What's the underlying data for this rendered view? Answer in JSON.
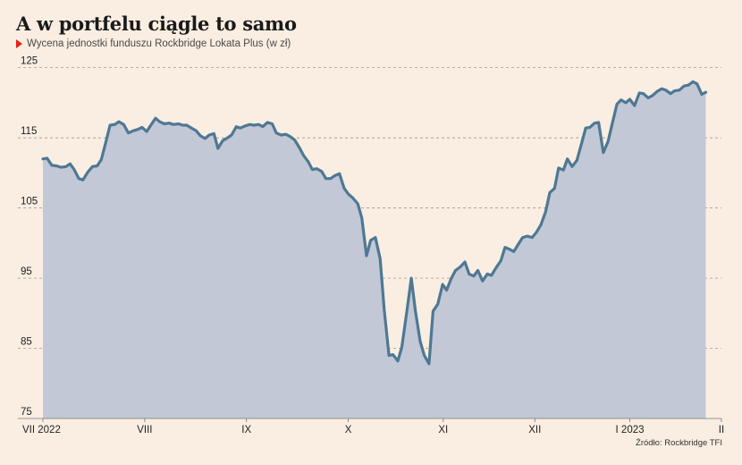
{
  "title": "A w portfelu ciągle to samo",
  "subtitle": "Wycena jednostki funduszu Rockbridge Lokata Plus (w zł)",
  "source": "Źródło: Rockbridge TFI",
  "colors": {
    "background": "#f9eee1",
    "line": "#4e7894",
    "area": "#c3c8d6",
    "marker": "#e2231a",
    "grid": "#8a8a8a"
  },
  "chart_data": {
    "type": "area",
    "title": "A w portfelu ciągle to samo",
    "subtitle": "Wycena jednostki funduszu Rockbridge Lokata Plus (w zł)",
    "xlabel": "",
    "ylabel": "",
    "ylim": [
      75,
      127
    ],
    "yticks": [
      75,
      85,
      95,
      105,
      115,
      125
    ],
    "grid": true,
    "x_ticks": [
      {
        "label": "VII 2022",
        "x": 0
      },
      {
        "label": "VIII",
        "x": 15
      },
      {
        "label": "IX",
        "x": 30
      },
      {
        "label": "X",
        "x": 45
      },
      {
        "label": "XI",
        "x": 59
      },
      {
        "label": "XII",
        "x": 72.5
      },
      {
        "label": "I 2023",
        "x": 86.5
      },
      {
        "label": "II",
        "x": 100
      }
    ],
    "series": [
      {
        "values": [
          [
            0,
            112.0
          ],
          [
            0.6,
            112.1
          ],
          [
            1.3,
            111.1
          ],
          [
            2.0,
            111.0
          ],
          [
            2.7,
            110.8
          ],
          [
            3.4,
            110.9
          ],
          [
            4.0,
            111.3
          ],
          [
            4.6,
            110.5
          ],
          [
            5.3,
            109.2
          ],
          [
            5.9,
            109.0
          ],
          [
            6.6,
            110.1
          ],
          [
            7.3,
            110.9
          ],
          [
            8.0,
            111.0
          ],
          [
            8.6,
            111.9
          ],
          [
            9.3,
            114.5
          ],
          [
            9.9,
            116.8
          ],
          [
            10.6,
            116.9
          ],
          [
            11.2,
            117.3
          ],
          [
            11.9,
            116.9
          ],
          [
            12.6,
            115.7
          ],
          [
            13.3,
            116.0
          ],
          [
            14.0,
            116.2
          ],
          [
            14.6,
            116.5
          ],
          [
            15.3,
            115.9
          ],
          [
            15.9,
            116.8
          ],
          [
            16.6,
            117.8
          ],
          [
            17.2,
            117.3
          ],
          [
            17.9,
            117.0
          ],
          [
            18.6,
            117.1
          ],
          [
            19.2,
            116.9
          ],
          [
            20.0,
            117.0
          ],
          [
            20.6,
            116.8
          ],
          [
            21.2,
            116.8
          ],
          [
            21.9,
            116.4
          ],
          [
            22.6,
            116.0
          ],
          [
            23.2,
            115.3
          ],
          [
            23.9,
            114.9
          ],
          [
            24.5,
            115.4
          ],
          [
            25.2,
            115.6
          ],
          [
            25.8,
            113.5
          ],
          [
            26.5,
            114.6
          ],
          [
            27.2,
            115.0
          ],
          [
            27.8,
            115.4
          ],
          [
            28.5,
            116.6
          ],
          [
            29.1,
            116.4
          ],
          [
            29.8,
            116.7
          ],
          [
            30.5,
            116.9
          ],
          [
            31.1,
            116.8
          ],
          [
            31.8,
            116.9
          ],
          [
            32.4,
            116.6
          ],
          [
            33.1,
            117.2
          ],
          [
            33.8,
            117.0
          ],
          [
            34.4,
            115.7
          ],
          [
            35.1,
            115.4
          ],
          [
            35.8,
            115.5
          ],
          [
            36.4,
            115.2
          ],
          [
            37.1,
            114.7
          ],
          [
            37.8,
            113.6
          ],
          [
            38.4,
            112.5
          ],
          [
            39.1,
            111.6
          ],
          [
            39.7,
            110.5
          ],
          [
            40.4,
            110.6
          ],
          [
            41.1,
            110.2
          ],
          [
            41.7,
            109.2
          ],
          [
            42.4,
            109.2
          ],
          [
            43.0,
            109.6
          ],
          [
            43.7,
            109.9
          ],
          [
            44.4,
            107.8
          ],
          [
            45.0,
            107.0
          ],
          [
            45.7,
            106.4
          ],
          [
            46.4,
            105.6
          ],
          [
            47.0,
            103.6
          ],
          [
            47.7,
            98.2
          ],
          [
            48.3,
            100.4
          ],
          [
            49.0,
            100.8
          ],
          [
            49.7,
            97.8
          ],
          [
            50.3,
            90.5
          ],
          [
            51.0,
            84.0
          ],
          [
            51.6,
            84.1
          ],
          [
            52.3,
            83.2
          ],
          [
            52.9,
            85.2
          ],
          [
            53.6,
            90.0
          ],
          [
            54.3,
            95.0
          ],
          [
            54.9,
            90.3
          ],
          [
            55.6,
            86.0
          ],
          [
            56.2,
            84.0
          ],
          [
            56.9,
            82.8
          ],
          [
            57.5,
            90.3
          ],
          [
            58.2,
            91.3
          ],
          [
            58.9,
            94.1
          ],
          [
            59.5,
            93.3
          ],
          [
            60.2,
            95.0
          ],
          [
            60.8,
            96.1
          ],
          [
            61.5,
            96.6
          ],
          [
            62.2,
            97.3
          ],
          [
            62.8,
            95.6
          ],
          [
            63.5,
            95.3
          ],
          [
            64.1,
            96.1
          ],
          [
            64.8,
            94.6
          ],
          [
            65.5,
            95.6
          ],
          [
            66.1,
            95.4
          ],
          [
            66.8,
            96.5
          ],
          [
            67.5,
            97.5
          ],
          [
            68.1,
            99.4
          ],
          [
            68.8,
            99.1
          ],
          [
            69.4,
            98.8
          ],
          [
            70.1,
            99.9
          ],
          [
            70.7,
            100.8
          ],
          [
            71.4,
            101.0
          ],
          [
            72.1,
            100.8
          ],
          [
            72.7,
            101.5
          ],
          [
            73.4,
            102.6
          ],
          [
            74.1,
            104.5
          ],
          [
            74.7,
            107.2
          ],
          [
            75.4,
            107.8
          ],
          [
            76.0,
            110.7
          ],
          [
            76.7,
            110.4
          ],
          [
            77.3,
            112.0
          ],
          [
            78.0,
            110.9
          ],
          [
            78.7,
            111.8
          ],
          [
            79.3,
            113.9
          ],
          [
            80.0,
            116.4
          ],
          [
            80.6,
            116.5
          ],
          [
            81.3,
            117.1
          ],
          [
            81.9,
            117.2
          ],
          [
            82.6,
            112.9
          ],
          [
            83.3,
            114.5
          ],
          [
            83.9,
            117.0
          ],
          [
            84.6,
            119.8
          ],
          [
            85.2,
            120.4
          ],
          [
            85.9,
            120.0
          ],
          [
            86.5,
            120.5
          ],
          [
            87.2,
            119.6
          ],
          [
            87.9,
            121.4
          ],
          [
            88.5,
            121.3
          ],
          [
            89.2,
            120.7
          ],
          [
            89.8,
            121.0
          ],
          [
            90.5,
            121.6
          ],
          [
            91.2,
            122.0
          ],
          [
            91.8,
            121.8
          ],
          [
            92.5,
            121.3
          ],
          [
            93.1,
            121.7
          ],
          [
            93.8,
            121.8
          ],
          [
            94.5,
            122.4
          ],
          [
            95.1,
            122.5
          ],
          [
            95.8,
            123.0
          ],
          [
            96.4,
            122.7
          ],
          [
            97.1,
            121.2
          ],
          [
            97.7,
            121.5
          ]
        ]
      }
    ]
  }
}
